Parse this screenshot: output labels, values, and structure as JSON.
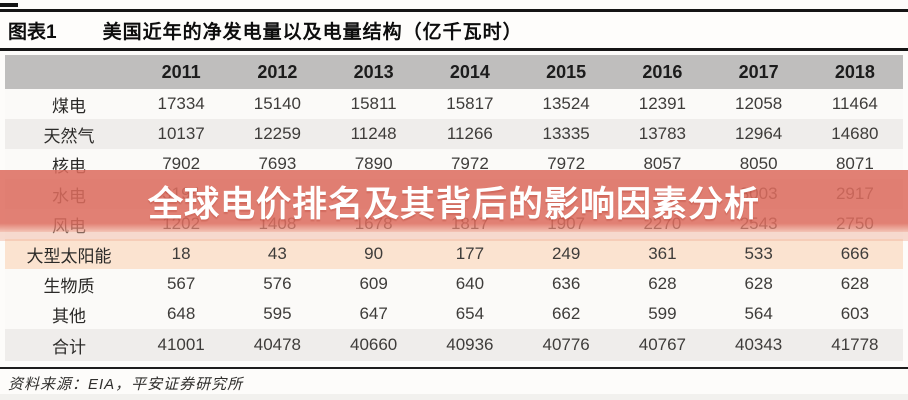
{
  "header": {
    "fig_label": "图表1",
    "title": "美国近年的净发电量以及电量结构（亿千瓦时）"
  },
  "table": {
    "year_headers": [
      "2011",
      "2012",
      "2013",
      "2014",
      "2015",
      "2016",
      "2017",
      "2018"
    ],
    "rows": [
      {
        "label": "煤电",
        "values": [
          "17334",
          "15140",
          "15811",
          "15817",
          "13524",
          "12391",
          "12058",
          "11464"
        ]
      },
      {
        "label": "天然气",
        "values": [
          "10137",
          "12259",
          "11248",
          "11266",
          "13335",
          "13783",
          "12964",
          "14680"
        ]
      },
      {
        "label": "核电",
        "values": [
          "7902",
          "7693",
          "7890",
          "7972",
          "7972",
          "8057",
          "8050",
          "8071"
        ]
      },
      {
        "label": "水电",
        "values": [
          "3194",
          "",
          "",
          "",
          "",
          "",
          "3003",
          "2917"
        ]
      },
      {
        "label": "风电",
        "values": [
          "1202",
          "1408",
          "1678",
          "1817",
          "1907",
          "2270",
          "2543",
          "2750"
        ]
      },
      {
        "label": "大型太阳能",
        "values": [
          "18",
          "43",
          "90",
          "177",
          "249",
          "361",
          "533",
          "666"
        ]
      },
      {
        "label": "生物质",
        "values": [
          "567",
          "576",
          "609",
          "640",
          "636",
          "628",
          "628",
          "628"
        ]
      },
      {
        "label": "其他",
        "values": [
          "648",
          "595",
          "647",
          "654",
          "662",
          "599",
          "564",
          "603"
        ]
      },
      {
        "label": "合计",
        "values": [
          "41001",
          "40478",
          "40660",
          "40936",
          "40776",
          "40767",
          "40343",
          "41778"
        ]
      }
    ]
  },
  "watermark": {
    "text": "全球电价排名及其背后的影响因素分析"
  },
  "footer": {
    "source": "资料来源：EIA，平安证券研究所"
  },
  "colors": {
    "watermark_band": "#dd6c5e",
    "watermark_text": "#ffffff",
    "header_row_bg": "#bfbebd",
    "solar_row_bg": "#fbe3d0",
    "rule_black": "#151515"
  }
}
